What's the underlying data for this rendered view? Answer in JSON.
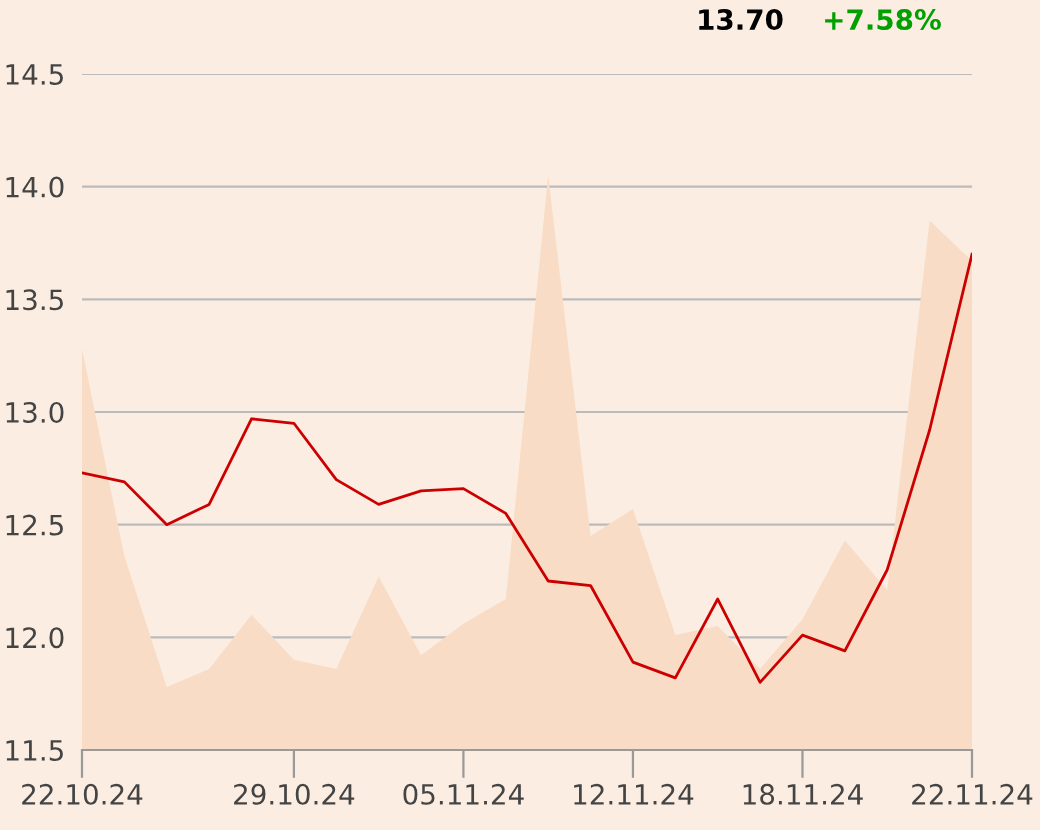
{
  "chart_data": {
    "type": "line",
    "categories": [
      "22.10.24",
      null,
      null,
      null,
      null,
      "29.10.24",
      null,
      null,
      null,
      "05.11.24",
      null,
      null,
      null,
      "12.11.24",
      null,
      null,
      null,
      "18.11.24",
      null,
      null,
      null,
      "22.11.24"
    ],
    "series": [
      {
        "type": "area",
        "color": "#f8dcc6",
        "values": [
          13.28,
          12.36,
          11.78,
          11.86,
          12.1,
          11.9,
          11.86,
          12.27,
          11.92,
          12.06,
          12.17,
          14.05,
          12.45,
          12.57,
          12.01,
          12.05,
          11.86,
          12.08,
          12.43,
          12.21,
          13.85,
          13.67
        ]
      },
      {
        "color": "#cc0000",
        "values": [
          12.73,
          12.69,
          12.5,
          12.59,
          12.97,
          12.95,
          12.7,
          12.59,
          12.65,
          12.66,
          12.55,
          12.25,
          12.23,
          11.89,
          11.82,
          12.17,
          11.8,
          12.01,
          11.94,
          12.3,
          12.92,
          13.7
        ]
      }
    ],
    "ylim": [
      11.5,
      14.5
    ],
    "yticks": [
      {
        "value": 11.5,
        "label": "11.5"
      },
      {
        "value": 12.0,
        "label": "12.0"
      },
      {
        "value": 12.5,
        "label": "12.5"
      },
      {
        "value": 13.0,
        "label": "13.0"
      },
      {
        "value": 13.5,
        "label": "13.5"
      },
      {
        "value": 14.0,
        "label": "14.0"
      },
      {
        "value": 14.5,
        "label": "14.5"
      }
    ],
    "grid": "y",
    "annotations": [
      "13.70",
      "+7.58%"
    ]
  }
}
